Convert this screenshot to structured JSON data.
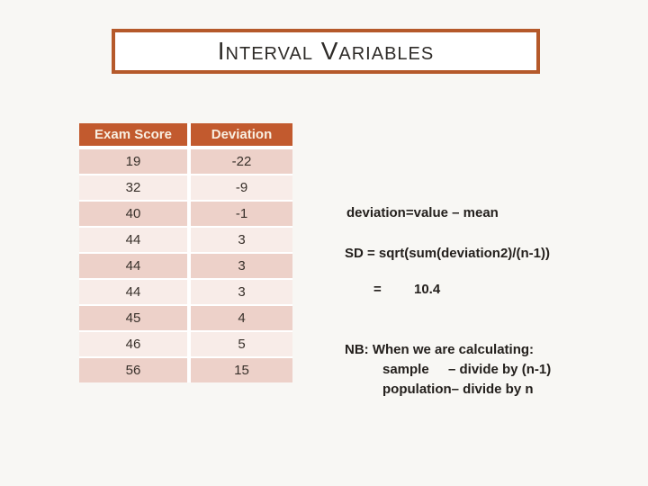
{
  "slide": {
    "title": "Interval Variables"
  },
  "table": {
    "headers": [
      "Exam Score",
      "Deviation"
    ],
    "rows": [
      [
        "19",
        "-22"
      ],
      [
        "32",
        "-9"
      ],
      [
        "40",
        "-1"
      ],
      [
        "44",
        "3"
      ],
      [
        "44",
        "3"
      ],
      [
        "44",
        "3"
      ],
      [
        "45",
        "4"
      ],
      [
        "46",
        "5"
      ],
      [
        "56",
        "15"
      ]
    ]
  },
  "notes": {
    "deviation_formula": "deviation=value – mean",
    "sd_formula": "SD = sqrt(sum(deviation2)/(n-1))",
    "equals_sign": "=",
    "sd_value": "10.4",
    "nb_heading": "NB: When we are calculating:",
    "nb_sample_label": "sample",
    "nb_sample_rule": "– divide by (n-1)",
    "nb_population_label": "population",
    "nb_population_rule": "– divide by n"
  },
  "colors": {
    "background": "#F8F7F4",
    "title_border": "#B5592A",
    "table_header_bg": "#C25A2E",
    "table_header_text": "#F8EFE2",
    "row_dark": "#EDD1C9",
    "row_light": "#F8ECE8",
    "text_dark": "#24201D"
  }
}
